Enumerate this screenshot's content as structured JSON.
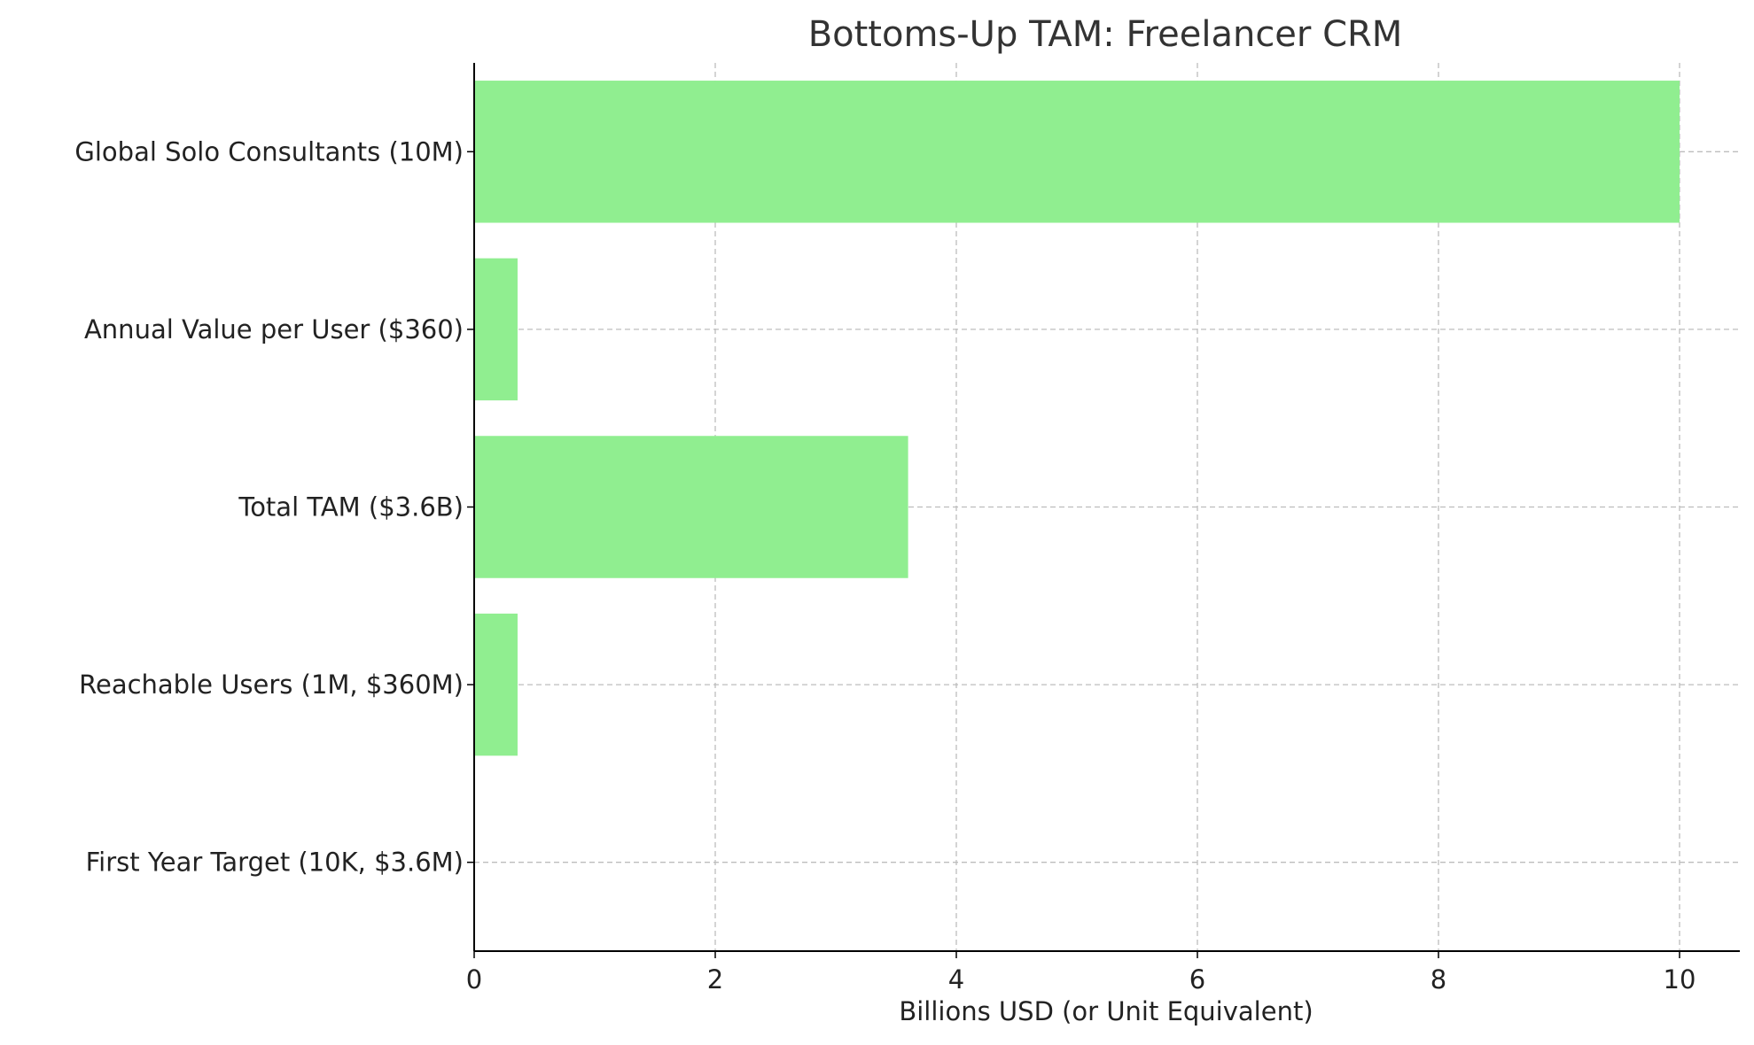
{
  "chart_data": {
    "type": "bar",
    "orientation": "horizontal",
    "title": "Bottoms-Up TAM: Freelancer CRM",
    "xlabel": "Billions USD (or Unit Equivalent)",
    "ylabel": "",
    "categories": [
      "Global Solo Consultants (10M)",
      "Annual Value per User ($360)",
      "Total TAM ($3.6B)",
      "Reachable Users (1M, $360M)",
      "First Year Target (10K, $3.6M)"
    ],
    "values": [
      10,
      0.36,
      3.6,
      0.36,
      0.0036
    ],
    "xlim": [
      0,
      10.5
    ],
    "xticks": [
      0,
      2,
      4,
      6,
      8,
      10
    ],
    "grid": true,
    "bar_color": "#90ee90"
  }
}
